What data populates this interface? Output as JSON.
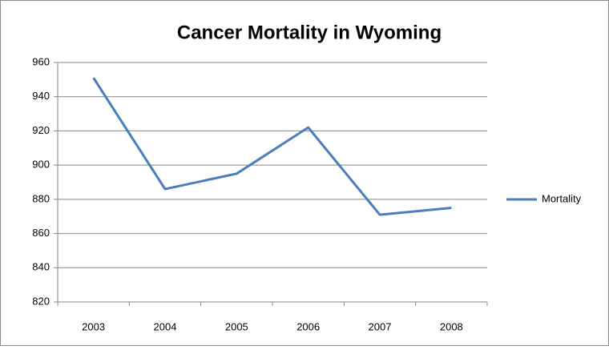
{
  "chart_data": {
    "type": "line",
    "title": "Cancer Mortality in Wyoming",
    "categories": [
      "2003",
      "2004",
      "2005",
      "2006",
      "2007",
      "2008"
    ],
    "series": [
      {
        "name": "Mortality",
        "color": "#4a7ebb",
        "values": [
          951,
          886,
          895,
          922,
          871,
          875
        ]
      }
    ],
    "ylim": [
      820,
      960
    ],
    "yticks": [
      820,
      840,
      860,
      880,
      900,
      920,
      940,
      960
    ],
    "grid": true,
    "legend": "right"
  }
}
